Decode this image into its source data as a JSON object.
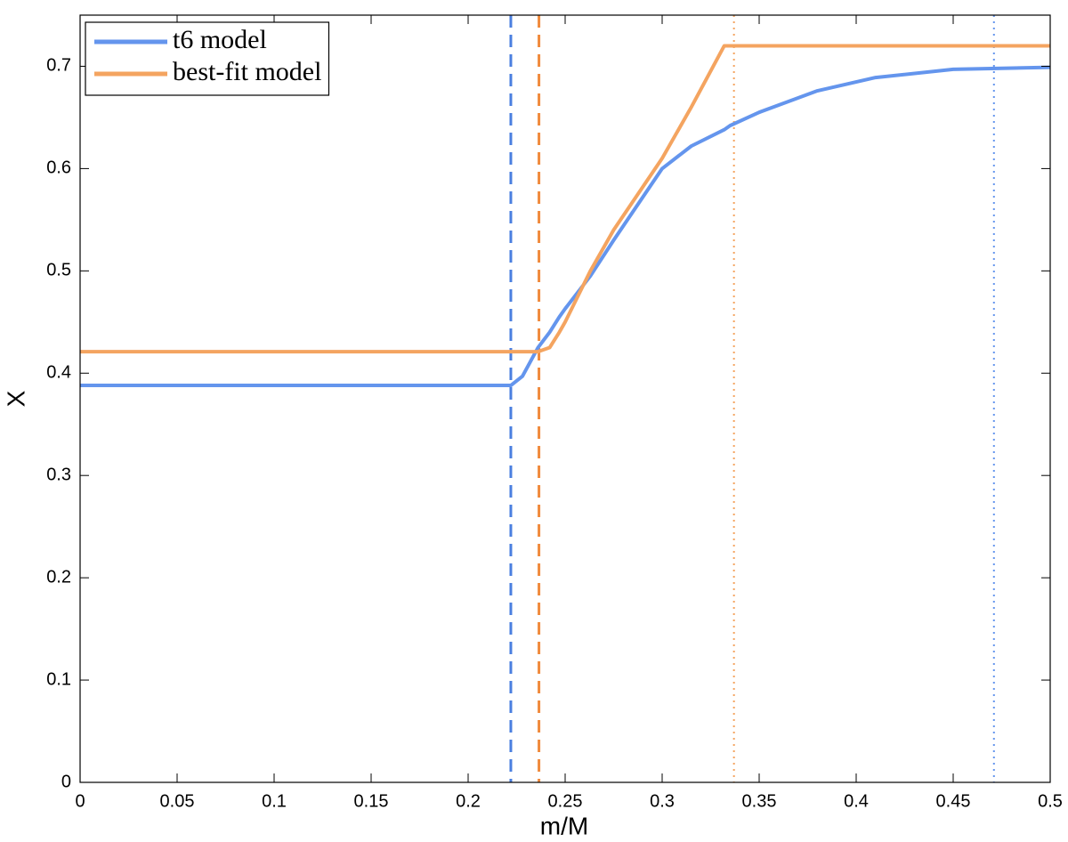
{
  "chart_data": {
    "type": "line",
    "xlabel": "m/M",
    "ylabel": "X",
    "x": [
      0,
      0.05,
      0.1,
      0.15,
      0.2,
      0.222,
      0.228,
      0.236,
      0.242,
      0.247,
      0.25,
      0.263,
      0.275,
      0.3,
      0.315,
      0.332,
      0.335,
      0.35,
      0.38,
      0.41,
      0.45,
      0.5
    ],
    "series": [
      {
        "name": "t6 model",
        "color": "#6495ed",
        "values": [
          0.388,
          0.388,
          0.388,
          0.388,
          0.388,
          0.388,
          0.397,
          0.425,
          0.44,
          0.455,
          0.463,
          0.495,
          0.53,
          0.6,
          0.622,
          0.638,
          0.642,
          0.655,
          0.676,
          0.689,
          0.697,
          0.699
        ]
      },
      {
        "name": "best-fit model",
        "color": "#f4a460",
        "values": [
          0.421,
          0.421,
          0.421,
          0.421,
          0.421,
          0.421,
          0.421,
          0.421,
          0.425,
          0.44,
          0.45,
          0.5,
          0.54,
          0.61,
          0.66,
          0.72,
          0.72,
          0.72,
          0.72,
          0.72,
          0.72,
          0.72
        ]
      }
    ],
    "vlines": [
      {
        "x": 0.222,
        "color": "#4a7fe0",
        "style": "dashed"
      },
      {
        "x": 0.2365,
        "color": "#f08a3c",
        "style": "dashed"
      },
      {
        "x": 0.337,
        "color": "#f4a460",
        "style": "dotted"
      },
      {
        "x": 0.471,
        "color": "#6495ed",
        "style": "dotted"
      }
    ],
    "xlim": [
      0,
      0.5
    ],
    "ylim": [
      0,
      0.75
    ],
    "xticks": [
      0,
      0.05,
      0.1,
      0.15,
      0.2,
      0.25,
      0.3,
      0.35,
      0.4,
      0.45,
      0.5
    ],
    "yticks": [
      0,
      0.1,
      0.2,
      0.3,
      0.4,
      0.5,
      0.6,
      0.7
    ],
    "legend": "upper left",
    "grid": false
  }
}
